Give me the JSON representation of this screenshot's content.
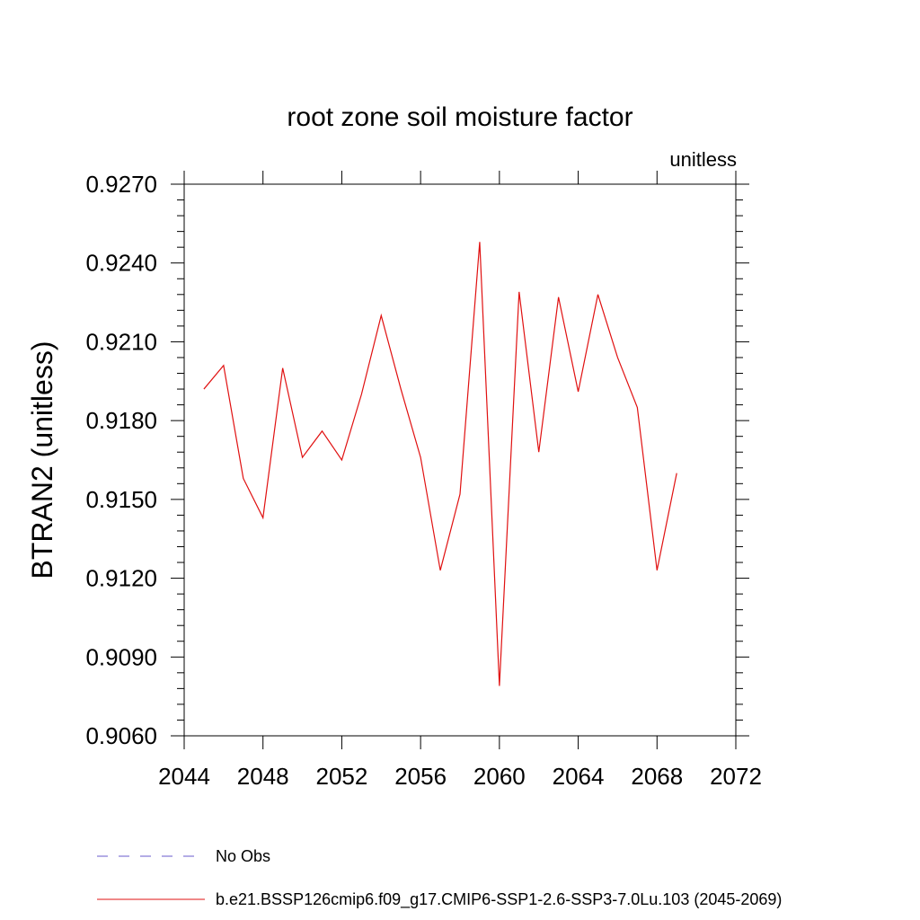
{
  "chart_data": {
    "type": "line",
    "title": "root zone soil moisture factor",
    "units": "unitless",
    "ylabel": "BTRAN2  (unitless)",
    "xlabel": "",
    "xlim": [
      2044,
      2072
    ],
    "ylim": [
      0.906,
      0.927
    ],
    "x_ticks": [
      "2044",
      "2048",
      "2052",
      "2056",
      "2060",
      "2064",
      "2068",
      "2072"
    ],
    "y_ticks": [
      "0.9060",
      "0.9090",
      "0.9120",
      "0.9150",
      "0.9180",
      "0.9210",
      "0.9240",
      "0.9270"
    ],
    "grid": false,
    "legend_position": "bottom",
    "series": [
      {
        "name": "b.e21.BSSP126cmip6.f09_g17.CMIP6-SSP1-2.6-SSP3-7.0Lu.103 (2045-2069)",
        "color": "#e01010",
        "style": "solid",
        "x": [
          2045,
          2046,
          2047,
          2048,
          2049,
          2050,
          2051,
          2052,
          2053,
          2054,
          2055,
          2056,
          2057,
          2058,
          2059,
          2060,
          2061,
          2062,
          2063,
          2064,
          2065,
          2066,
          2067,
          2068,
          2069
        ],
        "y": [
          0.9192,
          0.9201,
          0.9158,
          0.9143,
          0.92,
          0.9166,
          0.9176,
          0.9165,
          0.919,
          0.922,
          0.9192,
          0.9166,
          0.9123,
          0.9152,
          0.9248,
          0.9079,
          0.9229,
          0.9168,
          0.9227,
          0.9191,
          0.9228,
          0.9204,
          0.9185,
          0.9123,
          0.916
        ]
      }
    ],
    "legend": [
      {
        "label": "No Obs",
        "color": "#6a5acd",
        "style": "dashed"
      },
      {
        "label": "b.e21.BSSP126cmip6.f09_g17.CMIP6-SSP1-2.6-SSP3-7.0Lu.103 (2045-2069)",
        "color": "#e01010",
        "style": "solid"
      }
    ]
  }
}
